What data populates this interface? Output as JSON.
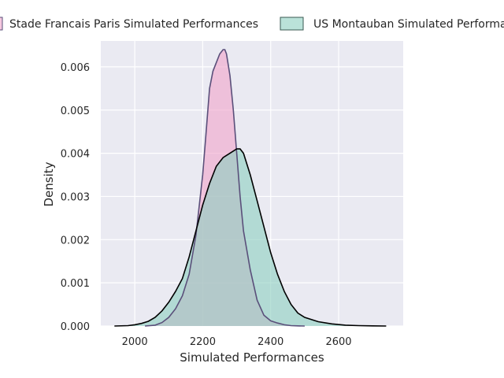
{
  "chart_data": {
    "type": "area",
    "title": "",
    "xlabel": "Simulated Performances",
    "ylabel": "Density",
    "xlim": [
      1900,
      2790
    ],
    "ylim": [
      0,
      0.0066
    ],
    "xticks": [
      2000,
      2200,
      2400,
      2600
    ],
    "yticks": [
      0.0,
      0.001,
      0.002,
      0.003,
      0.004,
      0.005,
      0.006
    ],
    "ytick_labels": [
      "0.000",
      "0.001",
      "0.002",
      "0.003",
      "0.004",
      "0.005",
      "0.006"
    ],
    "grid": true,
    "legend_position": "top",
    "series": [
      {
        "name": "Stade Francais Paris Simulated Performances",
        "fill_color": "#f0a3c9",
        "line_color": "#5a4f7a",
        "x": [
          2030,
          2060,
          2080,
          2100,
          2120,
          2140,
          2160,
          2180,
          2200,
          2210,
          2220,
          2230,
          2240,
          2250,
          2260,
          2265,
          2270,
          2280,
          2290,
          2300,
          2310,
          2320,
          2340,
          2360,
          2380,
          2400,
          2420,
          2440,
          2460,
          2480,
          2500
        ],
        "y": [
          0.0,
          2e-05,
          8e-05,
          0.0002,
          0.0004,
          0.0007,
          0.0012,
          0.0021,
          0.0035,
          0.0045,
          0.0055,
          0.0059,
          0.0061,
          0.0063,
          0.0064,
          0.0064,
          0.0063,
          0.0058,
          0.005,
          0.004,
          0.003,
          0.0022,
          0.0013,
          0.0006,
          0.00025,
          0.00012,
          7e-05,
          3e-05,
          1e-05,
          3e-06,
          0.0
        ]
      },
      {
        "name": "US Montauban Simulated Performances",
        "fill_color": "#8ccfc0",
        "line_color": "#000000",
        "x": [
          1940,
          1980,
          2000,
          2020,
          2040,
          2060,
          2080,
          2100,
          2120,
          2140,
          2160,
          2180,
          2200,
          2220,
          2240,
          2260,
          2280,
          2300,
          2310,
          2320,
          2340,
          2360,
          2380,
          2400,
          2420,
          2440,
          2460,
          2480,
          2500,
          2540,
          2580,
          2620,
          2660,
          2700,
          2740
        ],
        "y": [
          0.0,
          1e-05,
          3e-05,
          6e-05,
          0.00011,
          0.0002,
          0.00035,
          0.00055,
          0.0008,
          0.0011,
          0.0016,
          0.0022,
          0.0028,
          0.0033,
          0.0037,
          0.0039,
          0.004,
          0.0041,
          0.0041,
          0.004,
          0.0035,
          0.0029,
          0.0023,
          0.0017,
          0.0012,
          0.0008,
          0.0005,
          0.0003,
          0.0002,
          0.0001,
          5e-05,
          2e-05,
          1e-05,
          3e-06,
          0.0
        ]
      }
    ]
  }
}
